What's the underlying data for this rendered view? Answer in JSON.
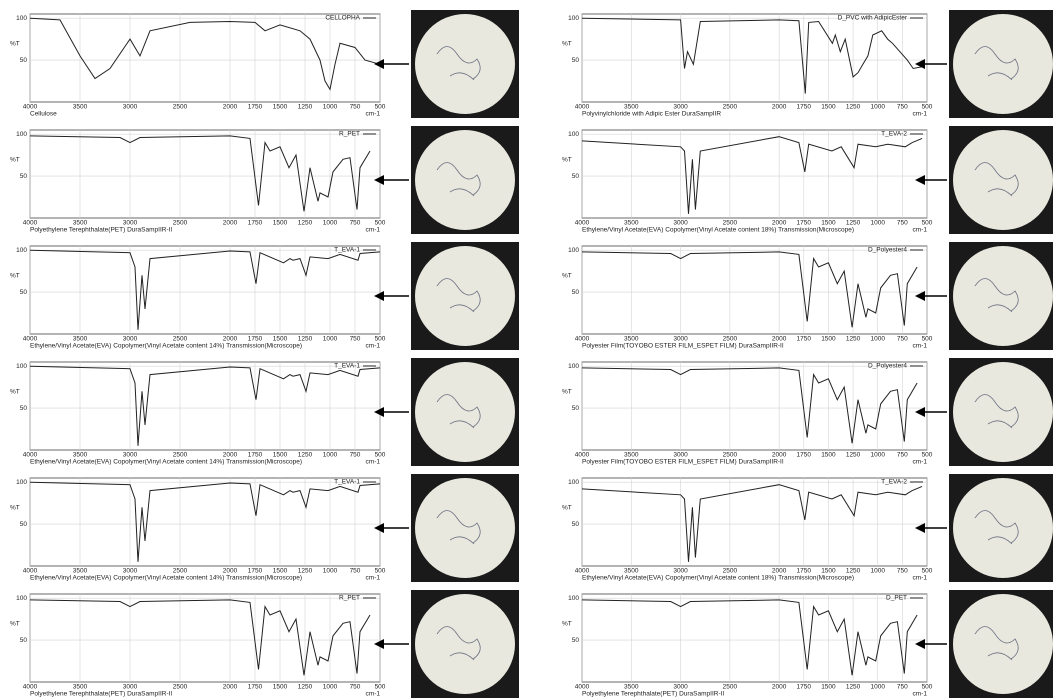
{
  "chart_data": [
    {
      "type": "line",
      "caption": "Cellulose",
      "ylabel": "%T",
      "xlabel": "cm-1",
      "xlim": [
        4000,
        500
      ],
      "ylim": [
        0,
        105
      ],
      "xticks": [
        4000,
        3500,
        3000,
        2500,
        2000,
        1750,
        1500,
        1250,
        1000,
        750,
        500
      ],
      "yticks": [
        50,
        100
      ],
      "grid": true,
      "x": [
        4000,
        3700,
        3500,
        3350,
        3200,
        3000,
        2900,
        2800,
        2400,
        2000,
        1750,
        1650,
        1500,
        1300,
        1200,
        1100,
        1050,
        1000,
        950,
        900,
        750,
        650,
        500
      ],
      "series": [
        {
          "name": "CELLOPHA",
          "color": "#222222",
          "values": [
            100,
            98,
            55,
            28,
            40,
            75,
            55,
            85,
            95,
            96,
            95,
            85,
            92,
            85,
            75,
            50,
            25,
            15,
            45,
            70,
            65,
            50,
            45
          ]
        }
      ]
    },
    {
      "type": "line",
      "caption": "Polyethylene Terephthalate(PET)  DuraSampIIR-II",
      "ylabel": "%T",
      "xlabel": "cm-1",
      "xlim": [
        4000,
        500
      ],
      "ylim": [
        0,
        105
      ],
      "xticks": [
        4000,
        3500,
        3000,
        2500,
        2000,
        1750,
        1500,
        1250,
        1000,
        750,
        500
      ],
      "yticks": [
        50,
        100
      ],
      "grid": true,
      "x": [
        4000,
        3100,
        3000,
        2900,
        2000,
        1800,
        1715,
        1650,
        1600,
        1500,
        1410,
        1340,
        1260,
        1200,
        1120,
        1100,
        1020,
        970,
        870,
        800,
        730,
        700,
        600
      ],
      "series": [
        {
          "name": "R_PET",
          "color": "#222222",
          "values": [
            98,
            96,
            90,
            96,
            98,
            95,
            15,
            90,
            80,
            85,
            60,
            75,
            8,
            60,
            20,
            30,
            25,
            55,
            70,
            72,
            10,
            60,
            80
          ]
        }
      ]
    },
    {
      "type": "line",
      "caption": "Ethylene/Vinyl Acetate(EVA) Copolymer(Vinyl Acetate content 14%)  Transmission(Microscope)",
      "ylabel": "%T",
      "xlabel": "cm-1",
      "xlim": [
        4000,
        500
      ],
      "ylim": [
        0,
        105
      ],
      "xticks": [
        4000,
        3500,
        3000,
        2500,
        2000,
        1750,
        1500,
        1250,
        1000,
        750,
        500
      ],
      "yticks": [
        50,
        100
      ],
      "grid": true,
      "x": [
        4000,
        3000,
        2950,
        2920,
        2880,
        2850,
        2800,
        2000,
        1800,
        1740,
        1700,
        1465,
        1400,
        1370,
        1300,
        1240,
        1200,
        1020,
        900,
        720,
        700,
        500
      ],
      "series": [
        {
          "name": "T_EVA-1",
          "color": "#222222",
          "values": [
            100,
            97,
            80,
            5,
            70,
            30,
            90,
            99,
            98,
            60,
            97,
            85,
            90,
            88,
            90,
            70,
            92,
            90,
            95,
            88,
            96,
            98
          ]
        }
      ]
    },
    {
      "type": "line",
      "caption": "Ethylene/Vinyl Acetate(EVA) Copolymer(Vinyl Acetate content 14%)  Transmission(Microscope)",
      "ylabel": "%T",
      "xlabel": "cm-1",
      "xlim": [
        4000,
        500
      ],
      "ylim": [
        0,
        105
      ],
      "xticks": [
        4000,
        3500,
        3000,
        2500,
        2000,
        1750,
        1500,
        1250,
        1000,
        750,
        500
      ],
      "yticks": [
        50,
        100
      ],
      "grid": true,
      "x": [
        4000,
        3000,
        2950,
        2920,
        2880,
        2850,
        2800,
        2000,
        1800,
        1740,
        1700,
        1465,
        1400,
        1370,
        1300,
        1240,
        1200,
        1020,
        900,
        720,
        700,
        500
      ],
      "series": [
        {
          "name": "T_EVA-1",
          "color": "#222222",
          "values": [
            100,
            97,
            80,
            5,
            70,
            30,
            90,
            99,
            98,
            60,
            97,
            85,
            90,
            88,
            90,
            70,
            92,
            90,
            95,
            88,
            96,
            98
          ]
        }
      ]
    },
    {
      "type": "line",
      "caption": "Ethylene/Vinyl Acetate(EVA) Copolymer(Vinyl Acetate content 14%)  Transmission(Microscope)",
      "ylabel": "%T",
      "xlabel": "cm-1",
      "xlim": [
        4000,
        500
      ],
      "ylim": [
        0,
        105
      ],
      "xticks": [
        4000,
        3500,
        3000,
        2500,
        2000,
        1750,
        1500,
        1250,
        1000,
        750,
        500
      ],
      "yticks": [
        50,
        100
      ],
      "grid": true,
      "x": [
        4000,
        3000,
        2950,
        2920,
        2880,
        2850,
        2800,
        2000,
        1800,
        1740,
        1700,
        1465,
        1400,
        1370,
        1300,
        1240,
        1200,
        1020,
        900,
        720,
        700,
        500
      ],
      "series": [
        {
          "name": "T_EVA-1",
          "color": "#222222",
          "values": [
            100,
            97,
            80,
            5,
            70,
            30,
            90,
            99,
            98,
            60,
            97,
            85,
            90,
            88,
            90,
            70,
            92,
            90,
            95,
            88,
            96,
            98
          ]
        }
      ]
    },
    {
      "type": "line",
      "caption": "Polyethylene Terephthalate(PET)  DuraSampIIR-II",
      "ylabel": "%T",
      "xlabel": "cm-1",
      "xlim": [
        4000,
        500
      ],
      "ylim": [
        0,
        105
      ],
      "xticks": [
        4000,
        3500,
        3000,
        2500,
        2000,
        1750,
        1500,
        1250,
        1000,
        750,
        500
      ],
      "yticks": [
        50,
        100
      ],
      "grid": true,
      "x": [
        4000,
        3100,
        3000,
        2900,
        2000,
        1800,
        1715,
        1650,
        1600,
        1500,
        1410,
        1340,
        1260,
        1200,
        1120,
        1100,
        1020,
        970,
        870,
        800,
        730,
        700,
        600
      ],
      "series": [
        {
          "name": "R_PET",
          "color": "#222222",
          "values": [
            98,
            96,
            90,
            96,
            98,
            95,
            15,
            90,
            80,
            85,
            60,
            75,
            8,
            60,
            20,
            30,
            25,
            55,
            70,
            72,
            10,
            60,
            80
          ]
        }
      ]
    },
    {
      "type": "line",
      "caption": "Polyvinylchloride with Adipic Ester  DuraSampIIR",
      "ylabel": "%T",
      "xlabel": "cm-1",
      "xlim": [
        4000,
        500
      ],
      "ylim": [
        0,
        105
      ],
      "xticks": [
        4000,
        3500,
        3000,
        2500,
        2000,
        1750,
        1500,
        1250,
        1000,
        750,
        500
      ],
      "yticks": [
        50,
        100
      ],
      "grid": true,
      "x": [
        4000,
        3000,
        2960,
        2930,
        2870,
        2800,
        2000,
        1800,
        1735,
        1700,
        1600,
        1460,
        1430,
        1380,
        1330,
        1250,
        1200,
        1150,
        1100,
        1050,
        960,
        900,
        850,
        700,
        640,
        550
      ],
      "series": [
        {
          "name": "D_PVC with AdipicEster",
          "color": "#222222",
          "values": [
            100,
            98,
            40,
            60,
            45,
            96,
            98,
            97,
            10,
            95,
            96,
            70,
            80,
            60,
            75,
            30,
            35,
            45,
            55,
            80,
            85,
            75,
            70,
            50,
            40,
            42
          ]
        }
      ]
    },
    {
      "type": "line",
      "caption": "Ethylene/Vinyl Acetate(EVA) Copolymer(Vinyl Acetate content 18%)  Transmission(Microscope)",
      "ylabel": "%T",
      "xlabel": "cm-1",
      "xlim": [
        4000,
        500
      ],
      "ylim": [
        0,
        105
      ],
      "xticks": [
        4000,
        3500,
        3000,
        2500,
        2000,
        1750,
        1500,
        1250,
        1000,
        750,
        500
      ],
      "yticks": [
        50,
        100
      ],
      "grid": true,
      "x": [
        4000,
        3000,
        2960,
        2920,
        2880,
        2850,
        2800,
        2000,
        1800,
        1740,
        1700,
        1465,
        1370,
        1240,
        1200,
        1020,
        900,
        720,
        650,
        550
      ],
      "series": [
        {
          "name": "T_EVA-2",
          "color": "#222222",
          "values": [
            92,
            85,
            80,
            5,
            70,
            10,
            80,
            97,
            90,
            55,
            88,
            80,
            85,
            60,
            88,
            85,
            88,
            85,
            90,
            95
          ]
        }
      ]
    },
    {
      "type": "line",
      "caption": "Polyester Film(TOYOBO ESTER FILM_ESPET FILM)  DuraSampIIR-II",
      "ylabel": "%T",
      "xlabel": "cm-1",
      "xlim": [
        4000,
        500
      ],
      "ylim": [
        0,
        105
      ],
      "xticks": [
        4000,
        3500,
        3000,
        2500,
        2000,
        1750,
        1500,
        1250,
        1000,
        750,
        500
      ],
      "yticks": [
        50,
        100
      ],
      "grid": true,
      "x": [
        4000,
        3100,
        3000,
        2900,
        2000,
        1800,
        1715,
        1650,
        1600,
        1500,
        1410,
        1340,
        1260,
        1200,
        1120,
        1100,
        1020,
        970,
        870,
        800,
        730,
        700,
        600
      ],
      "series": [
        {
          "name": "D_Polyester4",
          "color": "#222222",
          "values": [
            98,
            96,
            90,
            96,
            98,
            95,
            15,
            90,
            80,
            85,
            60,
            75,
            8,
            60,
            20,
            30,
            25,
            55,
            70,
            72,
            10,
            60,
            80
          ]
        }
      ]
    },
    {
      "type": "line",
      "caption": "Polyester Film(TOYOBO ESTER FILM_ESPET FILM)  DuraSampIIR-II",
      "ylabel": "%T",
      "xlabel": "cm-1",
      "xlim": [
        4000,
        500
      ],
      "ylim": [
        0,
        105
      ],
      "xticks": [
        4000,
        3500,
        3000,
        2500,
        2000,
        1750,
        1500,
        1250,
        1000,
        750,
        500
      ],
      "yticks": [
        50,
        100
      ],
      "grid": true,
      "x": [
        4000,
        3100,
        3000,
        2900,
        2000,
        1800,
        1715,
        1650,
        1600,
        1500,
        1410,
        1340,
        1260,
        1200,
        1120,
        1100,
        1020,
        970,
        870,
        800,
        730,
        700,
        600
      ],
      "series": [
        {
          "name": "D_Polyester4",
          "color": "#222222",
          "values": [
            98,
            96,
            90,
            96,
            98,
            95,
            15,
            90,
            80,
            85,
            60,
            75,
            8,
            60,
            20,
            30,
            25,
            55,
            70,
            72,
            10,
            60,
            80
          ]
        }
      ]
    },
    {
      "type": "line",
      "caption": "Ethylene/Vinyl Acetate(EVA) Copolymer(Vinyl Acetate content 18%)  Transmission(Microscope)",
      "ylabel": "%T",
      "xlabel": "cm-1",
      "xlim": [
        4000,
        500
      ],
      "ylim": [
        0,
        105
      ],
      "xticks": [
        4000,
        3500,
        3000,
        2500,
        2000,
        1750,
        1500,
        1250,
        1000,
        750,
        500
      ],
      "yticks": [
        50,
        100
      ],
      "grid": true,
      "x": [
        4000,
        3000,
        2960,
        2920,
        2880,
        2850,
        2800,
        2000,
        1800,
        1740,
        1700,
        1465,
        1370,
        1240,
        1200,
        1020,
        900,
        720,
        650,
        550
      ],
      "series": [
        {
          "name": "T_EVA-2",
          "color": "#222222",
          "values": [
            92,
            85,
            80,
            5,
            70,
            10,
            80,
            97,
            90,
            55,
            88,
            80,
            85,
            60,
            88,
            85,
            88,
            85,
            90,
            95
          ]
        }
      ]
    },
    {
      "type": "line",
      "caption": "Polyethylene Terephthalate(PET)  DuraSampIIR-II",
      "ylabel": "%T",
      "xlabel": "cm-1",
      "xlim": [
        4000,
        500
      ],
      "ylim": [
        0,
        105
      ],
      "xticks": [
        4000,
        3500,
        3000,
        2500,
        2000,
        1750,
        1500,
        1250,
        1000,
        750,
        500
      ],
      "yticks": [
        50,
        100
      ],
      "grid": true,
      "x": [
        4000,
        3100,
        3000,
        2900,
        2000,
        1800,
        1715,
        1650,
        1600,
        1500,
        1410,
        1340,
        1260,
        1200,
        1120,
        1100,
        1020,
        970,
        870,
        800,
        730,
        700,
        600
      ],
      "series": [
        {
          "name": "D_PET",
          "color": "#222222",
          "values": [
            98,
            96,
            90,
            96,
            98,
            95,
            15,
            90,
            80,
            85,
            60,
            75,
            8,
            60,
            20,
            30,
            25,
            55,
            70,
            72,
            10,
            60,
            80
          ]
        }
      ]
    }
  ]
}
